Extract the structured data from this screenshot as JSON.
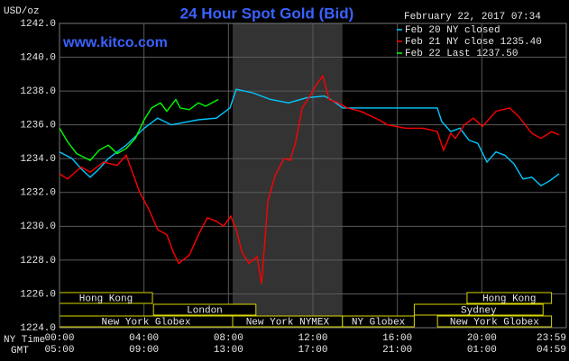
{
  "chart_data": {
    "type": "line",
    "title": "24 Hour Spot Gold (Bid)",
    "site": "www.kitco.com",
    "timestamp": "February 22, 2017 07:34",
    "ylabel": "USD/oz",
    "x_row_label": "NY Time",
    "x2_row_label": "GMT",
    "xlim": [
      0,
      24
    ],
    "ylim": [
      1224,
      1242
    ],
    "yticks": [
      {
        "value": 1224,
        "label": "1224.0"
      },
      {
        "value": 1226,
        "label": "1226.0"
      },
      {
        "value": 1228,
        "label": "1228.0"
      },
      {
        "value": 1230,
        "label": "1230.0"
      },
      {
        "value": 1232,
        "label": "1232.0"
      },
      {
        "value": 1234,
        "label": "1234.0"
      },
      {
        "value": 1236,
        "label": "1236.0"
      },
      {
        "value": 1238,
        "label": "1238.0"
      },
      {
        "value": 1240,
        "label": "1240.0"
      },
      {
        "value": 1242,
        "label": "1242.0"
      }
    ],
    "xticks": [
      {
        "value": 0,
        "label": "00:00"
      },
      {
        "value": 4,
        "label": "04:00"
      },
      {
        "value": 8,
        "label": "08:00"
      },
      {
        "value": 12,
        "label": "12:00"
      },
      {
        "value": 16,
        "label": "16:00"
      },
      {
        "value": 20,
        "label": "20:00"
      },
      {
        "value": 23.983,
        "label": "23:59"
      }
    ],
    "x2ticks": [
      {
        "value": 0,
        "label": "05:00"
      },
      {
        "value": 4,
        "label": "09:00"
      },
      {
        "value": 8,
        "label": "13:00"
      },
      {
        "value": 12,
        "label": "17:00"
      },
      {
        "value": 16,
        "label": "21:00"
      },
      {
        "value": 20,
        "label": "01:00"
      },
      {
        "value": 23.983,
        "label": "04:59"
      }
    ],
    "grid": true,
    "legend": "top-right",
    "shade": [
      8.2,
      13.4
    ],
    "sessions": [
      {
        "label": "Hong Kong",
        "row": 0,
        "start": 0,
        "end": 4.4
      },
      {
        "label": "London",
        "row": 1,
        "start": 4.45,
        "end": 9.3
      },
      {
        "label": "New York Globex",
        "row": 2,
        "start": 0,
        "end": 8.2
      },
      {
        "label": "New York NYMEX",
        "row": 2,
        "start": 8.2,
        "end": 13.4
      },
      {
        "label": "NY Globex",
        "row": 2,
        "start": 13.4,
        "end": 16.8
      },
      {
        "label": "Sydney",
        "row": 1,
        "start": 16.8,
        "end": 22.9
      },
      {
        "label": "Hong Kong",
        "row": 0,
        "start": 19.3,
        "end": 23.3
      },
      {
        "label": "New York Globex",
        "row": 2,
        "start": 17.9,
        "end": 23.3
      }
    ],
    "series": [
      {
        "name": "Feb 20 NY closed",
        "color": "#00c8ff",
        "x": [
          0,
          0.6,
          1.02,
          1.45,
          1.88,
          2.31,
          3.16,
          4.01,
          4.65,
          5.29,
          5.72,
          6.58,
          7.43,
          8.07,
          8.37,
          9.14,
          9.99,
          10.85,
          11.7,
          12.55,
          12.98,
          13.41,
          15.12,
          16.82,
          17.89,
          18.1,
          18.53,
          18.96,
          19.39,
          19.81,
          20.24,
          20.67,
          21.09,
          21.52,
          21.95,
          22.37,
          22.8,
          23.23,
          23.66
        ],
        "values": [
          1234.4,
          1234.0,
          1233.4,
          1232.9,
          1233.4,
          1234.0,
          1234.8,
          1235.8,
          1236.4,
          1236.0,
          1236.1,
          1236.3,
          1236.4,
          1237.0,
          1238.1,
          1237.9,
          1237.5,
          1237.3,
          1237.6,
          1237.7,
          1237.4,
          1237.0,
          1237.0,
          1237.0,
          1237.0,
          1236.2,
          1235.6,
          1235.8,
          1235.1,
          1234.9,
          1233.8,
          1234.4,
          1234.2,
          1233.7,
          1232.8,
          1232.9,
          1232.4,
          1232.7,
          1233.1
        ]
      },
      {
        "name": "Feb 21 NY close 1235.40",
        "color": "#ff0000",
        "x": [
          0,
          0.38,
          1.02,
          1.45,
          2.09,
          2.73,
          3.16,
          3.8,
          4.23,
          4.65,
          5.08,
          5.38,
          5.64,
          6.15,
          6.58,
          7.0,
          7.43,
          7.77,
          8.11,
          8.37,
          8.63,
          8.97,
          9.36,
          9.57,
          9.87,
          10.21,
          10.63,
          10.93,
          11.19,
          11.49,
          11.91,
          12.13,
          12.47,
          12.77,
          13.19,
          13.62,
          14.26,
          15.12,
          15.54,
          16.4,
          17.25,
          17.89,
          18.19,
          18.53,
          18.75,
          19.17,
          19.6,
          20.03,
          20.67,
          21.31,
          21.74,
          22.37,
          22.8,
          23.31,
          23.66
        ],
        "values": [
          1233.1,
          1232.8,
          1233.5,
          1233.2,
          1233.8,
          1233.6,
          1234.2,
          1232.0,
          1231.0,
          1229.8,
          1229.5,
          1228.5,
          1227.8,
          1228.3,
          1229.5,
          1230.5,
          1230.3,
          1230.0,
          1230.6,
          1229.8,
          1228.5,
          1227.8,
          1228.2,
          1226.6,
          1231.5,
          1233.0,
          1234.0,
          1233.9,
          1235.0,
          1237.0,
          1237.8,
          1238.3,
          1238.9,
          1237.5,
          1237.3,
          1237.0,
          1236.8,
          1236.3,
          1236.0,
          1235.8,
          1235.8,
          1235.6,
          1234.5,
          1235.5,
          1235.2,
          1236.0,
          1236.4,
          1235.9,
          1236.8,
          1237.0,
          1236.5,
          1235.5,
          1235.2,
          1235.6,
          1235.4
        ]
      },
      {
        "name": "Feb 22 Last 1237.50",
        "color": "#00ff00",
        "x": [
          0,
          0.38,
          0.81,
          1.45,
          1.88,
          2.31,
          2.73,
          3.16,
          3.59,
          4.01,
          4.36,
          4.78,
          5.08,
          5.51,
          5.72,
          6.15,
          6.58,
          6.92,
          7.52
        ],
        "values": [
          1235.8,
          1235.0,
          1234.3,
          1233.9,
          1234.5,
          1234.8,
          1234.3,
          1234.6,
          1235.2,
          1236.3,
          1237.0,
          1237.3,
          1236.8,
          1237.5,
          1237.0,
          1236.9,
          1237.3,
          1237.1,
          1237.5
        ]
      }
    ]
  }
}
